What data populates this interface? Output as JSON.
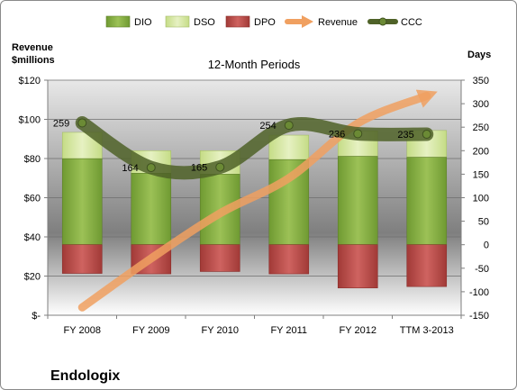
{
  "chart_data": {
    "type": "bar",
    "title": "12-Month Periods",
    "company": "Endologix",
    "categories": [
      "FY 2008",
      "FY 2009",
      "FY 2010",
      "FY 2011",
      "FY 2012",
      "TTM 3-2013"
    ],
    "left_axis": {
      "label_line1": "Revenue",
      "label_line2": "$millions",
      "ylim": [
        0,
        120
      ],
      "ticks": [
        0,
        20,
        40,
        60,
        80,
        100,
        120
      ],
      "tick_labels": [
        "$-",
        "$20",
        "$40",
        "$60",
        "$80",
        "$100",
        "$120"
      ]
    },
    "right_axis": {
      "label": "Days",
      "ylim": [
        -150,
        350
      ],
      "ticks": [
        -150,
        -100,
        -50,
        0,
        50,
        100,
        150,
        200,
        250,
        300,
        350
      ],
      "tick_labels": [
        "-150",
        "-100",
        "-50",
        "0",
        "50",
        "100",
        "150",
        "200",
        "250",
        "300",
        "350"
      ]
    },
    "grid": true,
    "legend_position": "top",
    "legend": [
      {
        "key": "dio",
        "label": "DIO",
        "color": "#8cb148"
      },
      {
        "key": "dso",
        "label": "DSO",
        "color": "#d7e8a4"
      },
      {
        "key": "dpo",
        "label": "DPO",
        "color": "#c0504d"
      },
      {
        "key": "revenue",
        "label": "Revenue",
        "color": "#f0a060"
      },
      {
        "key": "ccc",
        "label": "CCC",
        "color": "#4f6228"
      }
    ],
    "series": [
      {
        "name": "DIO",
        "axis": "right",
        "values": [
          183,
          152,
          150,
          181,
          188,
          186
        ]
      },
      {
        "name": "DSO",
        "axis": "right",
        "values": [
          56,
          48,
          50,
          52,
          54,
          57
        ]
      },
      {
        "name": "DPO",
        "axis": "right",
        "values": [
          -61,
          -62,
          -57,
          -62,
          -92,
          -89
        ]
      },
      {
        "name": "Revenue",
        "axis": "left",
        "values": [
          4,
          29,
          52,
          70,
          98,
          112
        ]
      },
      {
        "name": "CCC",
        "axis": "right",
        "values": [
          259,
          164,
          165,
          254,
          236,
          235
        ]
      }
    ],
    "ccc_labels": [
      "259",
      "164",
      "165",
      "254",
      "236",
      "235"
    ]
  }
}
